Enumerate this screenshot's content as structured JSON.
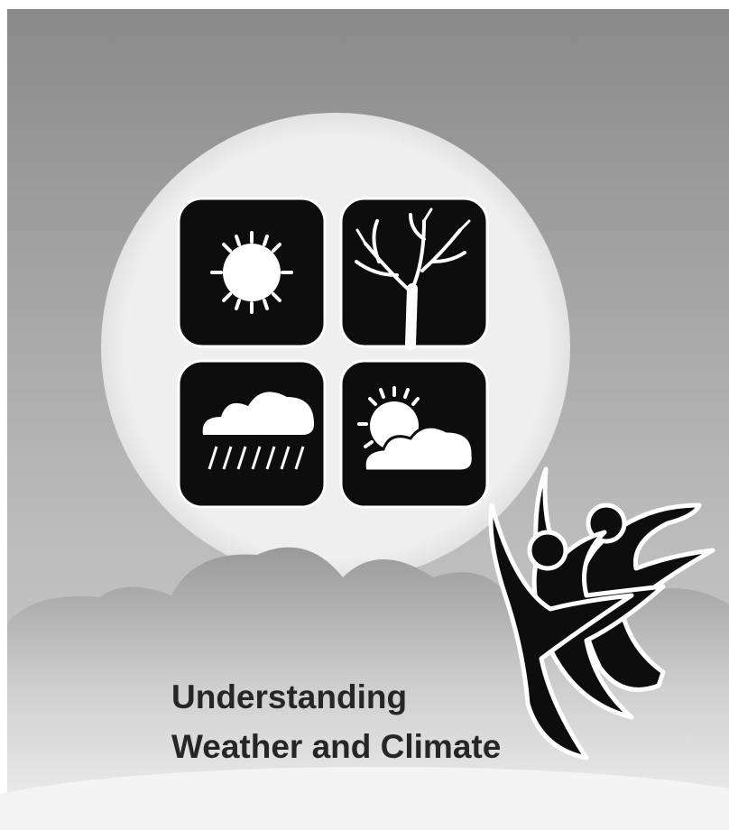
{
  "title": {
    "lines": [
      "Understanding",
      "Weather and Climate"
    ]
  }
}
